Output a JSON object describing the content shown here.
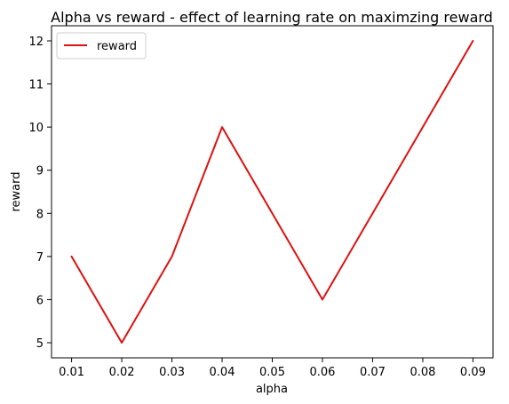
{
  "chart_data": {
    "type": "line",
    "title": "Alpha vs reward - effect of learning rate on maximzing reward",
    "xlabel": "alpha",
    "ylabel": "reward",
    "x": [
      0.01,
      0.02,
      0.03,
      0.04,
      0.06,
      0.09
    ],
    "series": [
      {
        "name": "reward",
        "color": "#dd1111",
        "values": [
          7,
          5,
          7,
          10,
          6,
          12
        ]
      }
    ],
    "xticks": [
      "0.01",
      "0.02",
      "0.03",
      "0.04",
      "0.05",
      "0.06",
      "0.07",
      "0.08",
      "0.09"
    ],
    "yticks": [
      "5",
      "6",
      "7",
      "8",
      "9",
      "10",
      "11",
      "12"
    ],
    "xlim": [
      0.006,
      0.094
    ],
    "ylim": [
      4.65,
      12.35
    ],
    "grid": false,
    "legend_position": "top-left"
  }
}
